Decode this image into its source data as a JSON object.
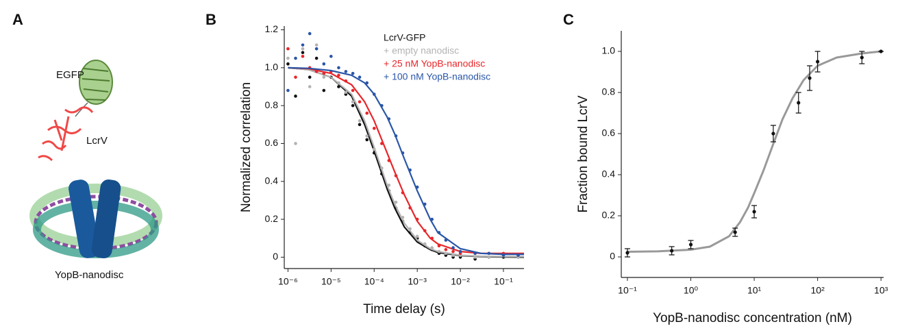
{
  "panel_a": {
    "panel": "A",
    "labels": [
      "EGFP",
      "LcrV",
      "YopB-nanodisc"
    ]
  },
  "chart_data": [
    {
      "type": "scatter",
      "panel": "B",
      "x_label": "Time delay (s)",
      "y_label": "Normalized correlation",
      "log_x": true,
      "xlim": [
        8.2e-07,
        0.3
      ],
      "ylim": [
        -0.06,
        1.22
      ],
      "xticks": [
        {
          "value": 1e-06,
          "label": "10⁻⁶"
        },
        {
          "value": 1e-05,
          "label": "10⁻⁵"
        },
        {
          "value": 0.0001,
          "label": "10⁻⁴"
        },
        {
          "value": 0.001,
          "label": "10⁻³"
        },
        {
          "value": 0.01,
          "label": "10⁻²"
        },
        {
          "value": 0.1,
          "label": "10⁻¹"
        }
      ],
      "yticks": [
        0,
        0.2,
        0.4,
        0.6,
        0.8,
        {
          "value": 1,
          "label": "1.0"
        },
        1.2
      ],
      "x": [
        1e-06,
        1.5e-06,
        2.2e-06,
        3.2e-06,
        4.6e-06,
        6.8e-06,
        1e-05,
        1.5e-05,
        2.2e-05,
        3.2e-05,
        4.6e-05,
        6.8e-05,
        0.0001,
        0.00015,
        0.00022,
        0.00032,
        0.00046,
        0.00068,
        0.001,
        0.0015,
        0.0022,
        0.0032,
        0.0046,
        0.0068,
        0.01,
        0.022,
        0.046,
        0.1,
        0.22
      ],
      "fit_x": [
        1e-06,
        3e-06,
        1e-05,
        3e-05,
        6e-05,
        0.0001,
        0.0002,
        0.0003,
        0.0005,
        0.001,
        0.002,
        0.003,
        0.01,
        0.03,
        0.1,
        0.3
      ],
      "series": [
        {
          "name": "LcrV-GFP",
          "color": "#111111",
          "values": [
            1.02,
            0.85,
            1.08,
            0.95,
            1.05,
            0.88,
            0.95,
            0.9,
            0.86,
            0.8,
            0.7,
            0.62,
            0.55,
            0.44,
            0.35,
            0.26,
            0.19,
            0.13,
            0.1,
            0.06,
            0.04,
            0.02,
            0.01,
            0.0,
            0.0,
            -0.01,
            0.0,
            0.0,
            0.0
          ],
          "fit": [
            1.0,
            0.99,
            0.95,
            0.85,
            0.7,
            0.56,
            0.36,
            0.26,
            0.16,
            0.08,
            0.04,
            0.025,
            0.008,
            0.003,
            0.001,
            0.0
          ]
        },
        {
          "name": "+ empty nanodisc",
          "color": "#b3b3b3",
          "values": [
            1.05,
            0.6,
            1.1,
            0.9,
            1.12,
            0.95,
            0.98,
            0.92,
            0.87,
            0.82,
            0.72,
            0.64,
            0.57,
            0.47,
            0.38,
            0.29,
            0.21,
            0.15,
            0.11,
            0.07,
            0.05,
            0.03,
            0.02,
            0.01,
            0.01,
            0.0,
            0.0,
            0.01,
            0.0
          ],
          "fit": [
            1.0,
            0.99,
            0.95,
            0.86,
            0.72,
            0.58,
            0.38,
            0.28,
            0.18,
            0.09,
            0.045,
            0.03,
            0.01,
            0.005,
            0.003,
            0.003
          ]
        },
        {
          "name": "+ 25 nM YopB-nanodisc",
          "color": "#e8262a",
          "values": [
            1.1,
            0.95,
            1.06,
            1.0,
            0.98,
            0.97,
            0.98,
            0.96,
            0.93,
            0.88,
            0.82,
            0.76,
            0.68,
            0.6,
            0.51,
            0.43,
            0.34,
            0.26,
            0.2,
            0.14,
            0.1,
            0.06,
            0.04,
            0.03,
            0.02,
            0.02,
            0.02,
            0.02,
            0.01
          ],
          "fit": [
            1.0,
            0.995,
            0.97,
            0.91,
            0.82,
            0.72,
            0.55,
            0.45,
            0.33,
            0.19,
            0.1,
            0.07,
            0.03,
            0.02,
            0.02,
            0.02
          ]
        },
        {
          "name": "+ 100 nM YopB-nanodisc",
          "color": "#2a56a8",
          "values": [
            0.88,
            1.05,
            1.12,
            1.18,
            1.1,
            1.02,
            1.06,
            1.0,
            0.98,
            0.97,
            0.95,
            0.92,
            0.86,
            0.8,
            0.73,
            0.64,
            0.55,
            0.46,
            0.37,
            0.28,
            0.2,
            0.13,
            0.09,
            0.05,
            0.03,
            0.02,
            0.02,
            0.01,
            0.01
          ],
          "fit": [
            1.0,
            0.997,
            0.985,
            0.96,
            0.92,
            0.86,
            0.74,
            0.65,
            0.52,
            0.35,
            0.2,
            0.13,
            0.045,
            0.02,
            0.015,
            0.015
          ]
        }
      ]
    },
    {
      "type": "scatter",
      "panel": "C",
      "x_label": "YopB-nanodisc concentration (nM)",
      "y_label": "Fraction bound LcrV",
      "log_x": true,
      "xlim": [
        0.08,
        1100
      ],
      "ylim": [
        -0.1,
        1.1
      ],
      "xticks": [
        {
          "value": 0.1,
          "label": "10⁻¹"
        },
        {
          "value": 1,
          "label": "10⁰"
        },
        {
          "value": 10,
          "label": "10¹"
        },
        {
          "value": 100,
          "label": "10²"
        },
        {
          "value": 1000,
          "label": "10³"
        }
      ],
      "yticks": [
        0,
        0.2,
        0.4,
        0.6,
        0.8,
        {
          "value": 1,
          "label": "1.0"
        }
      ],
      "x": [
        0.1,
        0.5,
        1,
        5,
        10,
        20,
        50,
        75,
        100,
        500,
        1000
      ],
      "fit_x": [
        0.1,
        0.3,
        1,
        2,
        4,
        6,
        8,
        10,
        14,
        20,
        28,
        40,
        60,
        100,
        200,
        500,
        1000
      ],
      "series": [
        {
          "color": "#111111",
          "values": [
            0.02,
            0.03,
            0.06,
            0.12,
            0.22,
            0.6,
            0.75,
            0.87,
            0.95,
            0.97,
            1.0
          ],
          "errors": [
            0.02,
            0.02,
            0.02,
            0.02,
            0.03,
            0.04,
            0.05,
            0.06,
            0.05,
            0.03,
            0.0
          ],
          "fit_color": "#999999",
          "fit": [
            0.025,
            0.027,
            0.035,
            0.05,
            0.1,
            0.17,
            0.24,
            0.31,
            0.42,
            0.55,
            0.67,
            0.77,
            0.86,
            0.93,
            0.97,
            0.99,
            1.0
          ]
        }
      ]
    }
  ]
}
